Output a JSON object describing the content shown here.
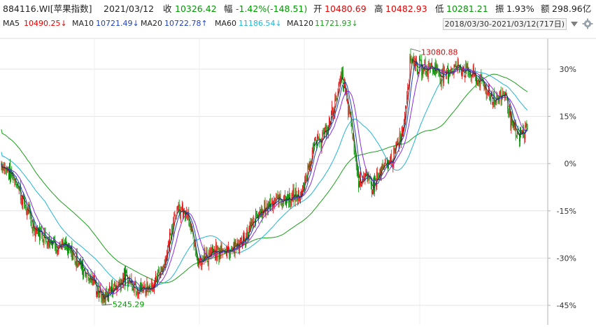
{
  "header": {
    "code": "884116.WI[苹果指数]",
    "date": "2021/03/12",
    "close_label": "收",
    "close_value": "10326.42",
    "change_label": "幅",
    "change_value": "-1.42%(-148.51)",
    "open_label": "开",
    "open_value": "10480.69",
    "high_label": "高",
    "high_value": "10482.93",
    "low_label": "低",
    "low_value": "10281.21",
    "amplitude_label": "振",
    "amplitude_value": "1.93%",
    "amount_label": "额",
    "amount_value": "298.96亿"
  },
  "ma_bar": {
    "ma5_label": "MA5",
    "ma5_value": "10490.25↓",
    "ma10_label": "MA10",
    "ma10_value": "10721.49↓",
    "ma20_label": "MA20",
    "ma20_value": "10722.78↑",
    "ma60_label": "MA60",
    "ma60_value": "11186.54↓",
    "ma120_label": "MA120",
    "ma120_value": "11721.93↓",
    "date_range": "2018/03/30-2021/03/12(717日)"
  },
  "icons": {
    "dropdown": "dropdown-triangle-icon",
    "settings": "gear-icon"
  },
  "colors": {
    "up": "#e60000",
    "down": "#009900",
    "ma5": "#333333",
    "ma10": "#1f3fbf",
    "ma20": "#8a2be2",
    "ma60": "#22b5d6",
    "ma120": "#1c9e1c",
    "grid": "#e4e4e4",
    "axis_text": "#333333"
  },
  "chart_data": {
    "type": "candlestick",
    "x_start": "2018/03/30",
    "x_end": "2021/03/12",
    "trading_days": 717,
    "y_axis_unit": "%",
    "y_ticks": [
      "30%",
      "15%",
      "0%",
      "-15%",
      "-30%",
      "-45%"
    ],
    "y_tick_values": [
      30,
      15,
      0,
      -15,
      -30,
      -45
    ],
    "ylim": [
      -47,
      38
    ],
    "annotations": [
      {
        "text": "13080.88",
        "value_pct": 36.5,
        "kind": "max"
      },
      {
        "text": "5245.29",
        "value_pct": -44.9,
        "kind": "min"
      }
    ],
    "approx_close_path_pct": [
      [
        0,
        0
      ],
      [
        20,
        -5
      ],
      [
        45,
        -20
      ],
      [
        75,
        -25
      ],
      [
        100,
        -28
      ],
      [
        130,
        -37
      ],
      [
        145,
        -43
      ],
      [
        175,
        -36
      ],
      [
        200,
        -40
      ],
      [
        220,
        -38
      ],
      [
        235,
        -30
      ],
      [
        248,
        -15
      ],
      [
        265,
        -16
      ],
      [
        280,
        -30
      ],
      [
        300,
        -29
      ],
      [
        325,
        -27
      ],
      [
        345,
        -25
      ],
      [
        365,
        -17
      ],
      [
        385,
        -12
      ],
      [
        410,
        -11
      ],
      [
        430,
        -10
      ],
      [
        445,
        5
      ],
      [
        465,
        10
      ],
      [
        487,
        28
      ],
      [
        500,
        12
      ],
      [
        510,
        -5
      ],
      [
        520,
        -4
      ],
      [
        530,
        -7
      ],
      [
        545,
        -2
      ],
      [
        560,
        2
      ],
      [
        575,
        12
      ],
      [
        585,
        34
      ],
      [
        600,
        30
      ],
      [
        615,
        31
      ],
      [
        630,
        28
      ],
      [
        650,
        31
      ],
      [
        670,
        29
      ],
      [
        690,
        25
      ],
      [
        705,
        20
      ],
      [
        720,
        23
      ],
      [
        730,
        12
      ],
      [
        740,
        8
      ],
      [
        752,
        12
      ]
    ]
  }
}
